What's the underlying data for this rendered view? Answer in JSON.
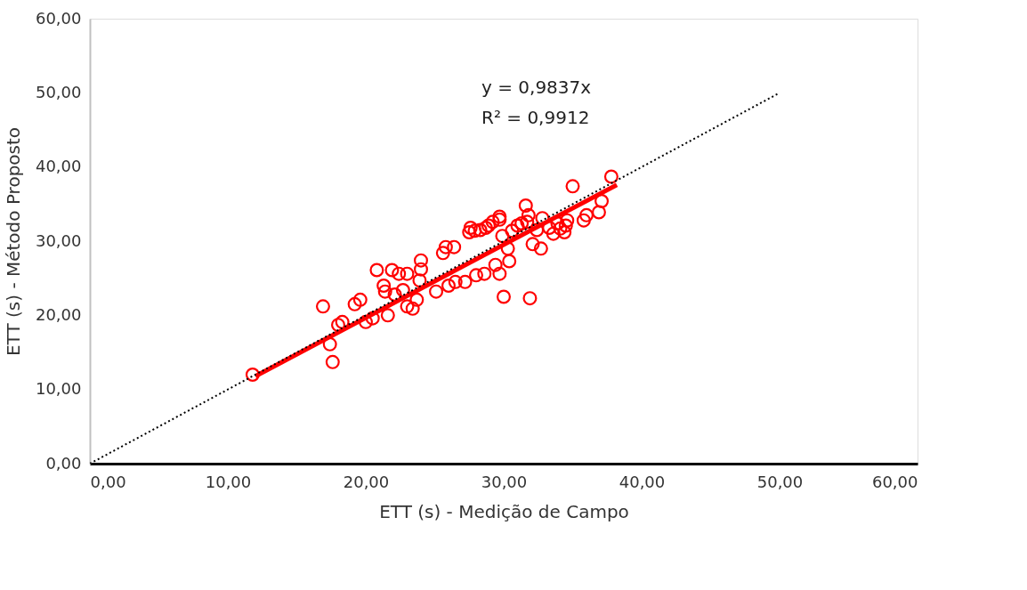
{
  "chart_data": {
    "type": "scatter",
    "xlabel": "ETT (s) - Medição de Campo",
    "ylabel": "ETT (s) - Método Proposto",
    "xlim": [
      0,
      60
    ],
    "ylim": [
      0,
      60
    ],
    "xticks": [
      {
        "value": 0,
        "label": "0,00"
      },
      {
        "value": 10,
        "label": "10,00"
      },
      {
        "value": 20,
        "label": "20,00"
      },
      {
        "value": 30,
        "label": "30,00"
      },
      {
        "value": 40,
        "label": "40,00"
      },
      {
        "value": 50,
        "label": "50,00"
      },
      {
        "value": 60,
        "label": "60,00"
      }
    ],
    "yticks": [
      {
        "value": 0,
        "label": "0,00"
      },
      {
        "value": 10,
        "label": "10,00"
      },
      {
        "value": 20,
        "label": "20,00"
      },
      {
        "value": 30,
        "label": "30,00"
      },
      {
        "value": 40,
        "label": "40,00"
      },
      {
        "value": 50,
        "label": "50,00"
      },
      {
        "value": 60,
        "label": "60,00"
      }
    ],
    "grid": false,
    "annotations": [
      "y = 0,9837x",
      "R² = 0,9912"
    ],
    "series": [
      {
        "color": "#ff0000",
        "marker": "circle",
        "x": [
          11.8,
          16.9,
          17.4,
          17.6,
          18.0,
          18.3,
          19.2,
          19.6,
          20.0,
          20.5,
          20.8,
          21.3,
          21.4,
          21.6,
          21.9,
          22.1,
          22.4,
          22.7,
          23.0,
          23.0,
          23.4,
          23.7,
          23.9,
          24.0,
          24.0,
          25.1,
          25.6,
          25.8,
          26.0,
          26.4,
          26.5,
          27.2,
          27.5,
          27.6,
          27.9,
          28.0,
          28.3,
          28.6,
          28.7,
          28.9,
          29.2,
          29.4,
          29.7,
          29.9,
          29.7,
          30.0,
          29.7,
          30.3,
          30.4,
          30.6,
          31.0,
          31.3,
          31.6,
          31.7,
          31.8,
          31.9,
          32.1,
          32.4,
          32.7,
          32.8,
          33.3,
          33.6,
          33.9,
          34.1,
          34.4,
          34.5,
          34.6,
          35.8,
          36.0,
          35.0,
          36.9,
          37.1,
          37.8
        ],
        "values": [
          12.0,
          21.2,
          16.1,
          13.7,
          18.7,
          19.1,
          21.5,
          22.1,
          19.1,
          19.6,
          26.1,
          24.0,
          23.2,
          20.0,
          26.1,
          22.8,
          25.6,
          23.4,
          25.6,
          21.2,
          20.9,
          22.1,
          24.7,
          27.4,
          26.2,
          23.2,
          28.4,
          29.2,
          24.0,
          29.2,
          24.5,
          24.5,
          31.2,
          31.8,
          31.4,
          25.4,
          31.5,
          25.6,
          31.8,
          32.1,
          32.6,
          26.8,
          32.9,
          30.7,
          33.3,
          22.5,
          25.6,
          29.0,
          27.3,
          31.4,
          32.1,
          32.4,
          34.8,
          32.6,
          33.5,
          22.3,
          29.6,
          31.5,
          29.0,
          33.1,
          31.8,
          31.0,
          32.4,
          31.7,
          31.2,
          32.1,
          32.8,
          32.8,
          33.5,
          37.4,
          33.9,
          35.4,
          38.7
        ]
      },
      {
        "type": "line",
        "color": "#ff0000",
        "line_style": "solid",
        "x": [
          12.0,
          38.2
        ],
        "values": [
          11.8,
          37.6
        ]
      },
      {
        "type": "line",
        "color": "#000000",
        "line_style": "dotted",
        "x": [
          0,
          50
        ],
        "values": [
          0,
          50
        ]
      }
    ]
  }
}
